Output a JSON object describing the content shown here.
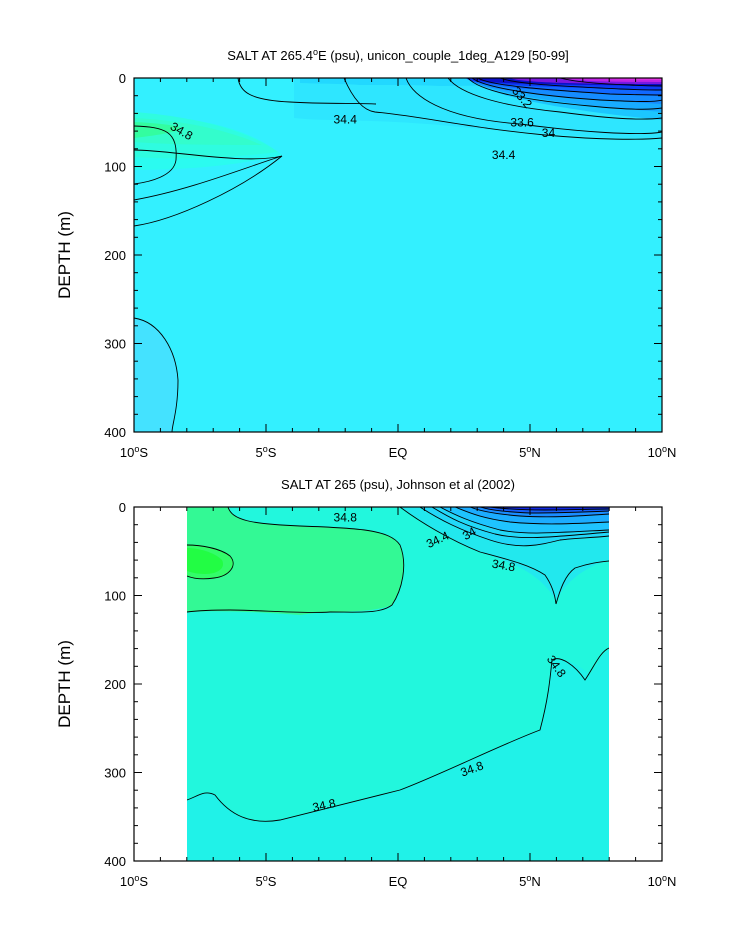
{
  "chart_data": [
    {
      "type": "contour",
      "title": "SALT AT 265.4°E (psu), unicon_couple_1deg_A129 [50-99]",
      "title_main": "SALT AT 265.4",
      "title_sup": "o",
      "title_rest": "E (psu), unicon_couple_1deg_A129 [50-99]",
      "xlabel": "",
      "ylabel": "DEPTH (m)",
      "xlim": [
        -10,
        10
      ],
      "ylim": [
        400,
        0
      ],
      "x_ticks": [
        {
          "value": -10,
          "num": "10",
          "hem": "S"
        },
        {
          "value": -5,
          "num": "5",
          "hem": "S"
        },
        {
          "value": 0,
          "num": "EQ",
          "hem": ""
        },
        {
          "value": 5,
          "num": "5",
          "hem": "N"
        },
        {
          "value": 10,
          "num": "10",
          "hem": "N"
        }
      ],
      "y_ticks": [
        0,
        100,
        200,
        300,
        400
      ],
      "data_xrange": [
        -10,
        10
      ],
      "contour_labels": [
        {
          "text": "34.8",
          "x": -8.2,
          "y": 60,
          "rot": 30
        },
        {
          "text": "34.4",
          "x": -2.0,
          "y": 47,
          "rot": 0
        },
        {
          "text": "33.2",
          "x": 4.7,
          "y": 22,
          "rot": 50
        },
        {
          "text": "33.6",
          "x": 4.7,
          "y": 50,
          "rot": 0
        },
        {
          "text": "34",
          "x": 5.7,
          "y": 62,
          "rot": 0
        },
        {
          "text": "34.4",
          "x": 4.0,
          "y": 87,
          "rot": 0
        }
      ]
    },
    {
      "type": "contour",
      "title": "SALT AT 265 (psu), Johnson et al (2002)",
      "xlabel": "",
      "ylabel": "DEPTH (m)",
      "xlim": [
        -10,
        10
      ],
      "ylim": [
        400,
        0
      ],
      "x_ticks": [
        {
          "value": -10,
          "num": "10",
          "hem": "S"
        },
        {
          "value": -5,
          "num": "5",
          "hem": "S"
        },
        {
          "value": 0,
          "num": "EQ",
          "hem": ""
        },
        {
          "value": 5,
          "num": "5",
          "hem": "N"
        },
        {
          "value": 10,
          "num": "10",
          "hem": "N"
        }
      ],
      "y_ticks": [
        0,
        100,
        200,
        300,
        400
      ],
      "data_xrange": [
        -8,
        8
      ],
      "contour_labels": [
        {
          "text": "34.8",
          "x": -2.0,
          "y": 12,
          "rot": 0
        },
        {
          "text": "34",
          "x": 2.7,
          "y": 30,
          "rot": -30
        },
        {
          "text": "34.4",
          "x": 1.5,
          "y": 37,
          "rot": -25
        },
        {
          "text": "34.8",
          "x": 4.0,
          "y": 66,
          "rot": 10
        },
        {
          "text": "34.8",
          "x": 6.0,
          "y": 180,
          "rot": 55
        },
        {
          "text": "34.8",
          "x": 2.8,
          "y": 296,
          "rot": -20
        },
        {
          "text": "34.8",
          "x": -2.8,
          "y": 337,
          "rot": -12
        }
      ]
    }
  ]
}
